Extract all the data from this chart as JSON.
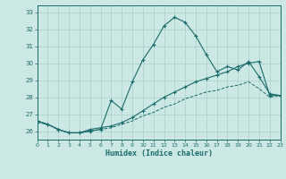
{
  "xlabel": "Humidex (Indice chaleur)",
  "background_color": "#cce8e5",
  "line_color": "#1a6b6b",
  "grid_color": "#aacfcc",
  "x_values": [
    0,
    1,
    2,
    3,
    4,
    5,
    6,
    7,
    8,
    9,
    10,
    11,
    12,
    13,
    14,
    15,
    16,
    17,
    18,
    19,
    20,
    21,
    22,
    23
  ],
  "series1": [
    26.6,
    26.4,
    26.1,
    25.9,
    25.9,
    26.0,
    26.1,
    27.8,
    27.3,
    28.9,
    30.2,
    31.1,
    32.2,
    32.7,
    32.4,
    31.6,
    30.5,
    29.5,
    29.8,
    29.6,
    30.1,
    29.2,
    28.2,
    28.1
  ],
  "series2": [
    26.6,
    26.4,
    26.1,
    25.9,
    25.9,
    26.1,
    26.2,
    26.3,
    26.5,
    26.8,
    27.2,
    27.6,
    28.0,
    28.3,
    28.6,
    28.9,
    29.1,
    29.3,
    29.5,
    29.8,
    30.0,
    30.1,
    28.1,
    28.1
  ],
  "series3": [
    26.5,
    26.4,
    26.1,
    25.9,
    25.9,
    26.0,
    26.1,
    26.2,
    26.4,
    26.6,
    26.9,
    27.1,
    27.4,
    27.6,
    27.9,
    28.1,
    28.3,
    28.4,
    28.6,
    28.7,
    28.9,
    28.5,
    28.0,
    28.1
  ],
  "xlim": [
    0,
    23
  ],
  "ylim": [
    25.5,
    33.4
  ],
  "yticks": [
    26,
    27,
    28,
    29,
    30,
    31,
    32,
    33
  ],
  "xticks": [
    0,
    1,
    2,
    3,
    4,
    5,
    6,
    7,
    8,
    9,
    10,
    11,
    12,
    13,
    14,
    15,
    16,
    17,
    18,
    19,
    20,
    21,
    22,
    23
  ]
}
